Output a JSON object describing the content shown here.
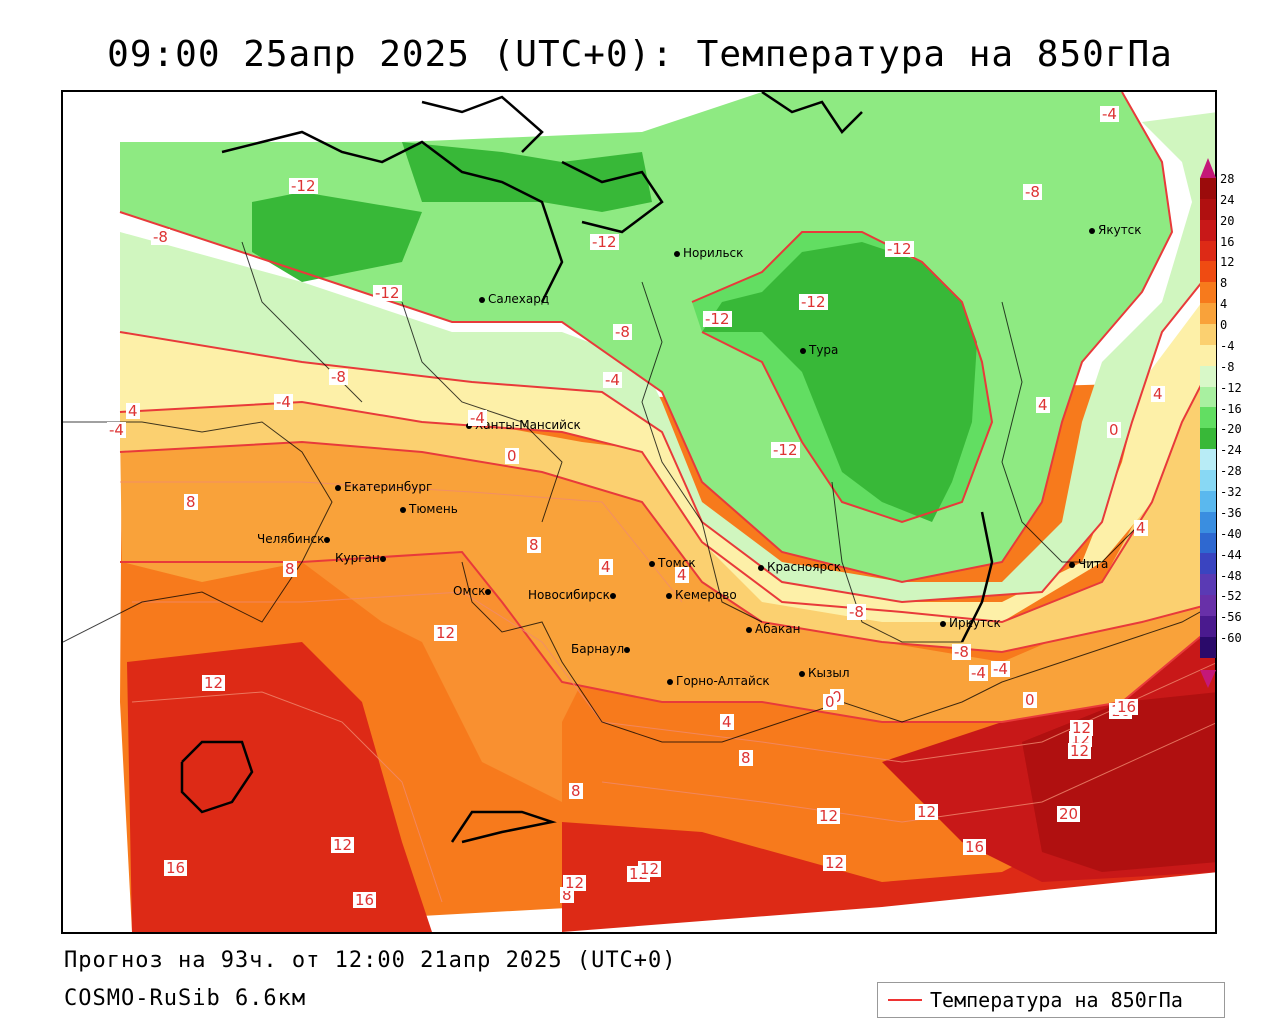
{
  "title": "09:00 25апр 2025 (UTC+0): Температура на 850гПа",
  "footer": {
    "forecast": "Прогноз на 93ч. от 12:00 21апр 2025 (UTC+0)",
    "model": "COSMO-RuSib 6.6км"
  },
  "legend": {
    "label": "Температура на 850гПа",
    "line_color": "#e83a3a"
  },
  "scale": {
    "labels": [
      "28",
      "24",
      "20",
      "16",
      "12",
      "8",
      "4",
      "0",
      "-4",
      "-8",
      "-12",
      "-16",
      "-20",
      "-24",
      "-28",
      "-32",
      "-36",
      "-40",
      "-44",
      "-48",
      "-52",
      "-56",
      "-60"
    ],
    "colors": [
      "#9b0b0b",
      "#b01010",
      "#c81818",
      "#dd2a16",
      "#ef4b12",
      "#f77a1c",
      "#f9a23a",
      "#fbd070",
      "#fdf0a8",
      "#d8f8c8",
      "#a8f0a0",
      "#62de62",
      "#38b838",
      "#b8ecf6",
      "#88d8f4",
      "#5ab8ee",
      "#3a8ee0",
      "#2e68d0",
      "#3a44c0",
      "#5a3ab4",
      "#6830a8",
      "#4a1a8e",
      "#2a0a6a"
    ],
    "top_color": "#c41878",
    "bottom_color": "#c41878"
  },
  "cities": [
    {
      "name": "Норильск"
    },
    {
      "name": "Якутск"
    },
    {
      "name": "Салехард"
    },
    {
      "name": "Тура"
    },
    {
      "name": "Ханты-Мансийск"
    },
    {
      "name": "Екатеринбург"
    },
    {
      "name": "Тюмень"
    },
    {
      "name": "Челябинск"
    },
    {
      "name": "Курган"
    },
    {
      "name": "Омск"
    },
    {
      "name": "Новосибирск"
    },
    {
      "name": "Томск"
    },
    {
      "name": "Кемерово"
    },
    {
      "name": "Красноярск"
    },
    {
      "name": "Абакан"
    },
    {
      "name": "Барнаул"
    },
    {
      "name": "Горно-Алтайск"
    },
    {
      "name": "Кызыл"
    },
    {
      "name": "Иркутск"
    },
    {
      "name": "Чита"
    }
  ],
  "contour_labels": [
    "-12",
    "-8",
    "-12",
    "-12",
    "-12",
    "-8",
    "-12",
    "-4",
    "-8",
    "-8",
    "-12",
    "-4",
    "-4",
    "4",
    "-4",
    "4",
    "-12",
    "0",
    "8",
    "8",
    "4",
    "8",
    "4",
    "0",
    "4",
    "-4",
    "12",
    "12",
    "4",
    "0",
    "0",
    "4",
    "8",
    "8",
    "16",
    "12",
    "20",
    "16",
    "12",
    "12",
    "12",
    "12",
    "8",
    "12",
    "16",
    "16",
    "12",
    "12",
    "12",
    "16",
    "12",
    "0",
    "-8",
    "-4",
    "-8",
    "-4",
    "12",
    "16"
  ]
}
